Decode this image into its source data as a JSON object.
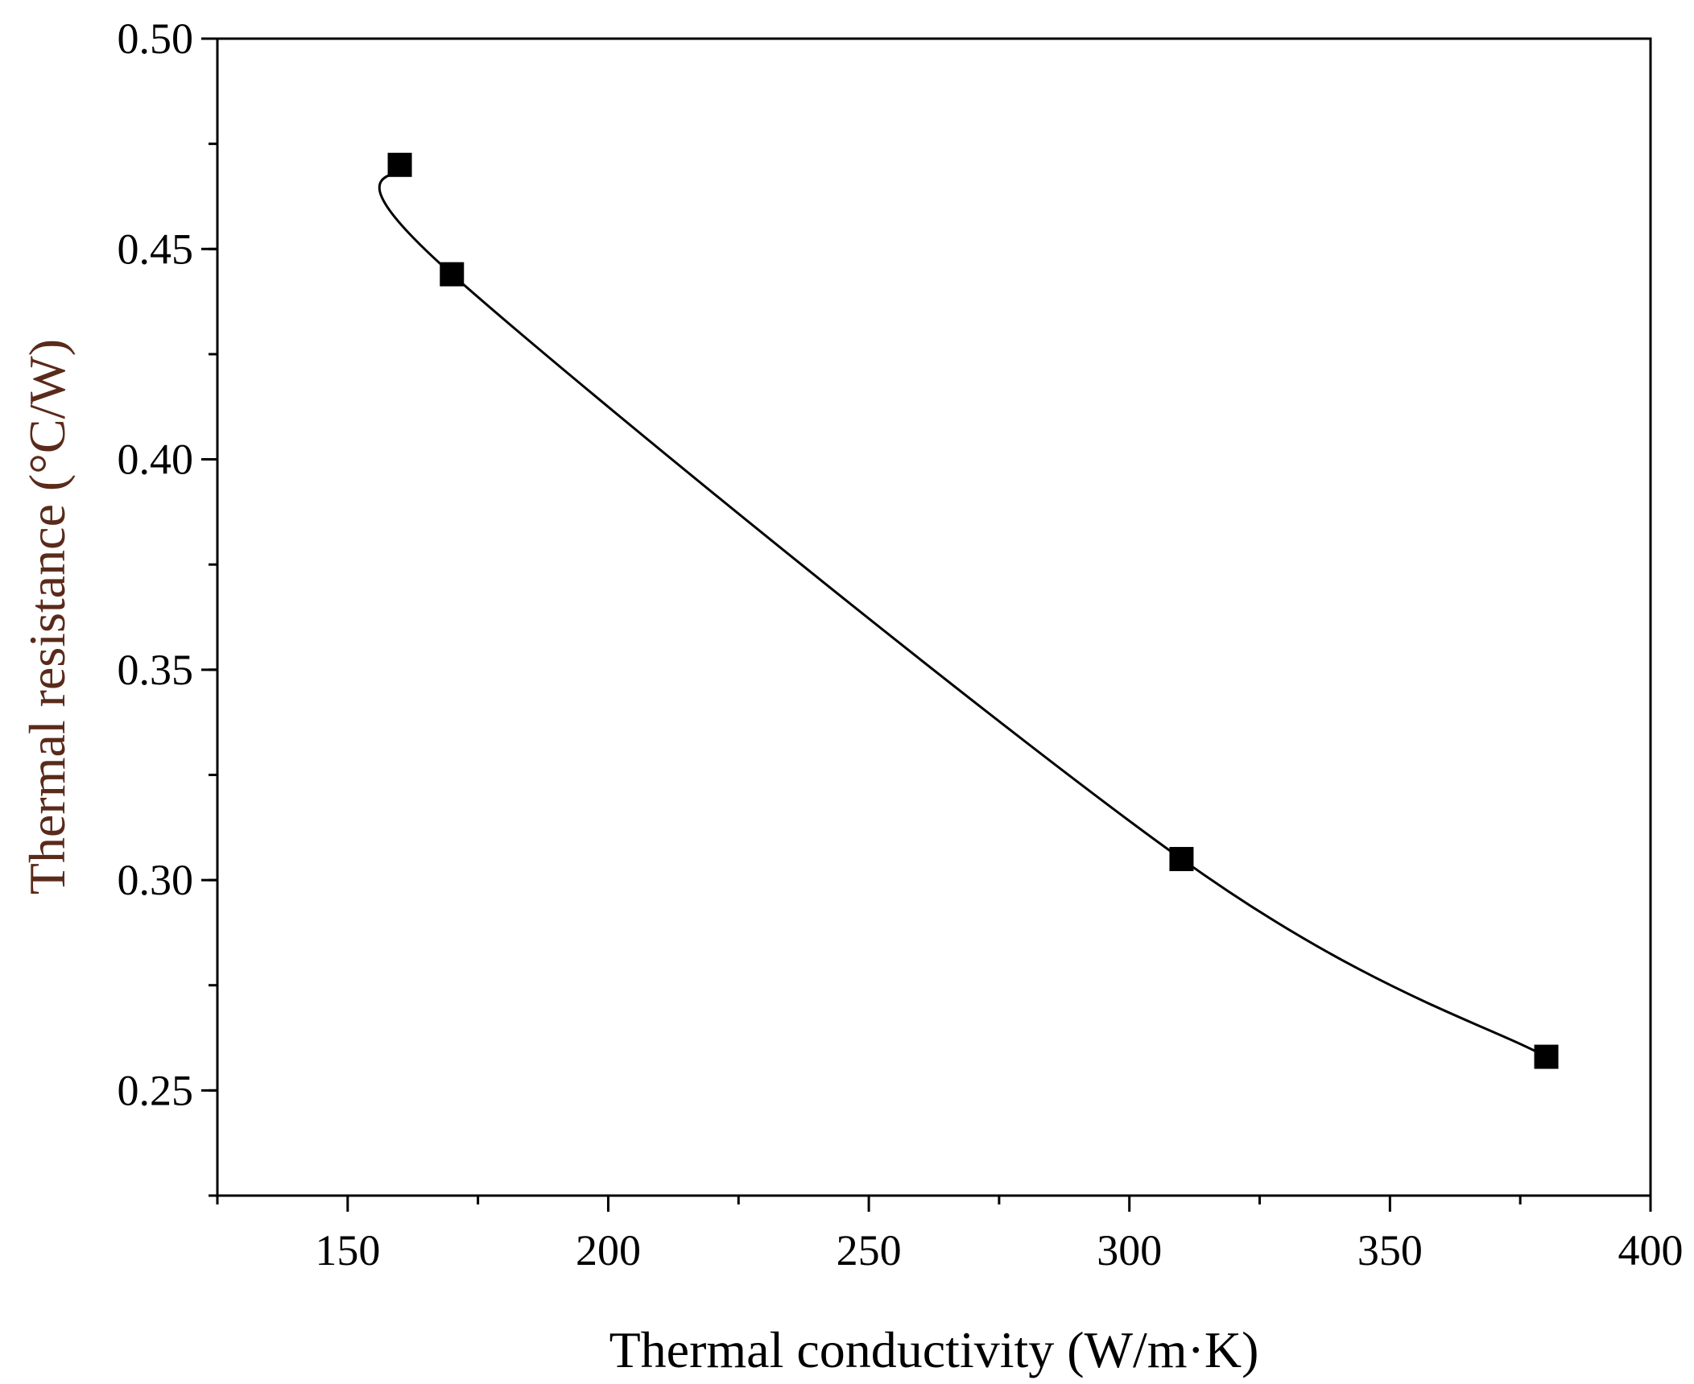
{
  "chart_data": {
    "type": "line",
    "title": "",
    "xlabel": "Thermal conductivity (W/m·K)",
    "ylabel": "Thermal resistance (°C/W)",
    "xlim": [
      125,
      400
    ],
    "ylim": [
      0.225,
      0.5
    ],
    "xticks": [
      150,
      200,
      250,
      300,
      350,
      400
    ],
    "xtick_labels": [
      "150",
      "200",
      "250",
      "300",
      "350",
      "400"
    ],
    "yticks": [
      0.25,
      0.3,
      0.35,
      0.4,
      0.45,
      0.5
    ],
    "ytick_labels": [
      "0.25",
      "0.30",
      "0.35",
      "0.40",
      "0.45",
      "0.50"
    ],
    "grid": false,
    "series": [
      {
        "name": "Thermal resistance",
        "marker": "square",
        "smooth": true,
        "x": [
          160,
          170,
          310,
          380
        ],
        "y": [
          0.47,
          0.444,
          0.305,
          0.258
        ]
      }
    ],
    "colors": {
      "line": "#000000",
      "marker": "#000000",
      "axis": "#000000",
      "text": "#000000",
      "ylabel": "#5a2a1a"
    }
  }
}
